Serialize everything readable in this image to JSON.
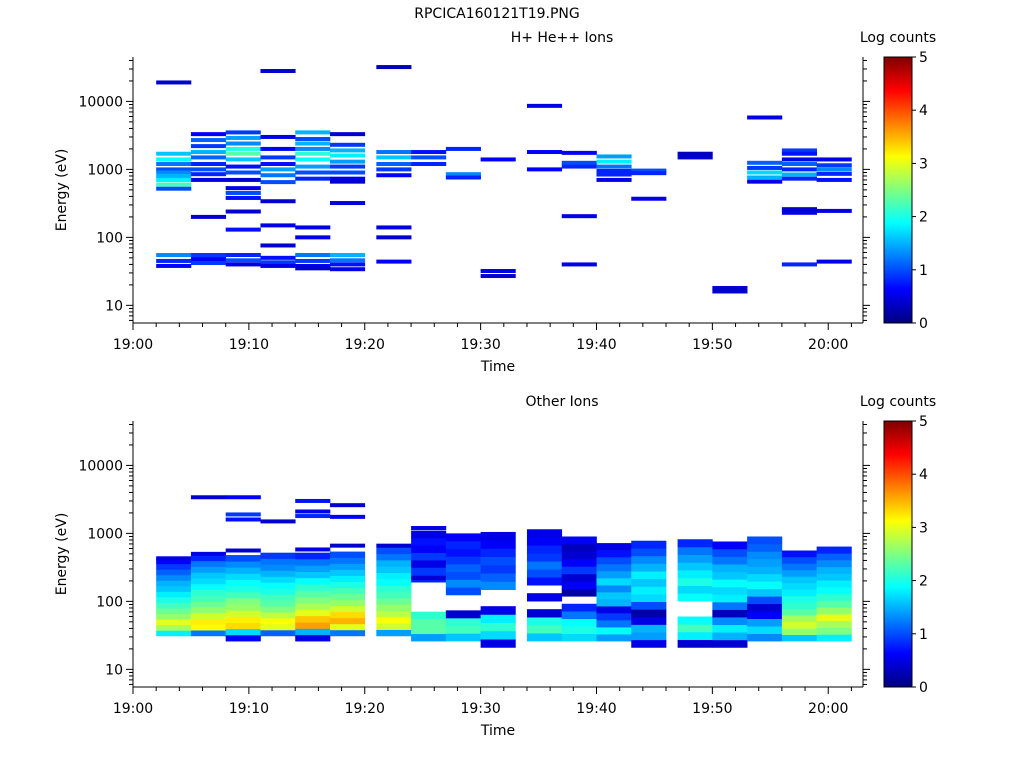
{
  "figure_title": "RPCICA160121T19.PNG",
  "colorbar": {
    "label": "Log counts",
    "ticks": [
      "0",
      "1",
      "2",
      "3",
      "4",
      "5"
    ],
    "range": [
      0,
      5
    ],
    "colormap": "jet"
  },
  "chart_data": [
    {
      "type": "heatmap",
      "title": "H+ He++ Ions",
      "xlabel": "Time",
      "ylabel": "Energy (eV)",
      "yscale": "log",
      "ylim": [
        5.5,
        45000
      ],
      "xlim_minutes": [
        0,
        63
      ],
      "x_ticks": [
        "19:00",
        "19:10",
        "19:20",
        "19:30",
        "19:40",
        "19:50",
        "20:00"
      ],
      "y_ticks": [
        "10",
        "100",
        "1000",
        "10000"
      ],
      "time_bins_start": [
        "19:02",
        "19:05",
        "19:08",
        "19:11",
        "19:14",
        "19:17",
        "19:21",
        "19:24",
        "19:27",
        "19:30",
        "19:34",
        "19:37",
        "19:40",
        "19:43",
        "19:47",
        "19:50",
        "19:53",
        "19:56",
        "19:59"
      ],
      "cells": [
        [
          0,
          19000,
          0.4
        ],
        [
          0,
          1700,
          1.6
        ],
        [
          0,
          1400,
          1.9
        ],
        [
          0,
          1200,
          1.2
        ],
        [
          0,
          1000,
          1.0
        ],
        [
          0,
          900,
          1.3
        ],
        [
          0,
          800,
          1.5
        ],
        [
          0,
          700,
          1.8
        ],
        [
          0,
          600,
          2.2
        ],
        [
          0,
          520,
          1.0
        ],
        [
          0,
          55,
          1.3
        ],
        [
          0,
          45,
          0.8
        ],
        [
          0,
          38,
          0.6
        ],
        [
          1,
          3300,
          0.6
        ],
        [
          1,
          2700,
          1.1
        ],
        [
          1,
          2200,
          0.9
        ],
        [
          1,
          1800,
          1.5
        ],
        [
          1,
          1500,
          1.1
        ],
        [
          1,
          1200,
          0.8
        ],
        [
          1,
          1000,
          1.0
        ],
        [
          1,
          850,
          0.8
        ],
        [
          1,
          700,
          0.5
        ],
        [
          1,
          200,
          0.4
        ],
        [
          1,
          55,
          0.9
        ],
        [
          1,
          48,
          0.6
        ],
        [
          1,
          42,
          0.9
        ],
        [
          2,
          3500,
          0.9
        ],
        [
          2,
          2900,
          1.4
        ],
        [
          2,
          2400,
          1.3
        ],
        [
          2,
          2000,
          2.0
        ],
        [
          2,
          1700,
          2.3
        ],
        [
          2,
          1400,
          1.6
        ],
        [
          2,
          1100,
          0.7
        ],
        [
          2,
          900,
          1.0
        ],
        [
          2,
          700,
          0.4
        ],
        [
          2,
          530,
          0.5
        ],
        [
          2,
          450,
          1.0
        ],
        [
          2,
          380,
          0.7
        ],
        [
          2,
          240,
          0.4
        ],
        [
          2,
          130,
          0.7
        ],
        [
          2,
          55,
          0.8
        ],
        [
          2,
          46,
          1.0
        ],
        [
          2,
          40,
          0.5
        ],
        [
          3,
          28000,
          0.4
        ],
        [
          3,
          3000,
          0.5
        ],
        [
          3,
          2000,
          0.6
        ],
        [
          3,
          1500,
          0.9
        ],
        [
          3,
          1200,
          0.7
        ],
        [
          3,
          1000,
          1.4
        ],
        [
          3,
          820,
          1.2
        ],
        [
          3,
          650,
          1.0
        ],
        [
          3,
          340,
          0.4
        ],
        [
          3,
          150,
          0.5
        ],
        [
          3,
          76,
          0.4
        ],
        [
          3,
          50,
          0.7
        ],
        [
          3,
          43,
          0.9
        ],
        [
          3,
          38,
          0.5
        ],
        [
          4,
          3500,
          1.5
        ],
        [
          4,
          2800,
          1.0
        ],
        [
          4,
          2400,
          1.5
        ],
        [
          4,
          2000,
          1.3
        ],
        [
          4,
          1700,
          2.1
        ],
        [
          4,
          1400,
          1.9
        ],
        [
          4,
          1100,
          1.4
        ],
        [
          4,
          900,
          1.0
        ],
        [
          4,
          730,
          0.8
        ],
        [
          4,
          140,
          0.5
        ],
        [
          4,
          100,
          0.5
        ],
        [
          4,
          55,
          1.2
        ],
        [
          4,
          45,
          0.9
        ],
        [
          4,
          38,
          0.5
        ],
        [
          4,
          35,
          0.4
        ],
        [
          5,
          3300,
          0.4
        ],
        [
          5,
          2300,
          0.9
        ],
        [
          5,
          1900,
          1.5
        ],
        [
          5,
          1600,
          1.8
        ],
        [
          5,
          1300,
          1.4
        ],
        [
          5,
          1100,
          0.9
        ],
        [
          5,
          900,
          1.0
        ],
        [
          5,
          730,
          0.5
        ],
        [
          5,
          660,
          0.4
        ],
        [
          5,
          320,
          0.5
        ],
        [
          5,
          55,
          1.5
        ],
        [
          5,
          46,
          1.2
        ],
        [
          5,
          40,
          0.7
        ],
        [
          5,
          34,
          0.5
        ],
        [
          6,
          32000,
          0.3
        ],
        [
          6,
          1800,
          1.2
        ],
        [
          6,
          1500,
          1.6
        ],
        [
          6,
          1200,
          1.1
        ],
        [
          6,
          1000,
          0.9
        ],
        [
          6,
          820,
          0.6
        ],
        [
          6,
          140,
          0.5
        ],
        [
          6,
          100,
          0.4
        ],
        [
          6,
          44,
          0.6
        ],
        [
          7,
          1800,
          0.7
        ],
        [
          7,
          1500,
          1.0
        ],
        [
          7,
          1200,
          0.8
        ],
        [
          8,
          2000,
          0.8
        ],
        [
          8,
          850,
          1.3
        ],
        [
          8,
          760,
          0.8
        ],
        [
          9,
          1400,
          0.6
        ],
        [
          9,
          32,
          0.5
        ],
        [
          9,
          27,
          0.4
        ],
        [
          10,
          8600,
          0.5
        ],
        [
          10,
          1800,
          0.6
        ],
        [
          10,
          1000,
          0.6
        ],
        [
          11,
          1750,
          0.6
        ],
        [
          11,
          1250,
          1.0
        ],
        [
          11,
          1100,
          0.8
        ],
        [
          11,
          205,
          0.5
        ],
        [
          11,
          40,
          0.5
        ],
        [
          12,
          1550,
          1.4
        ],
        [
          12,
          1300,
          1.8
        ],
        [
          12,
          1100,
          1.2
        ],
        [
          12,
          950,
          0.8
        ],
        [
          12,
          840,
          0.8
        ],
        [
          12,
          700,
          0.5
        ],
        [
          13,
          960,
          1.0
        ],
        [
          13,
          880,
          0.8
        ],
        [
          13,
          370,
          0.5
        ],
        [
          14,
          1700,
          0.3
        ],
        [
          14,
          1500,
          0.4
        ],
        [
          15,
          18,
          0.4
        ],
        [
          15,
          16,
          0.4
        ],
        [
          16,
          5800,
          0.5
        ],
        [
          16,
          1250,
          1.1
        ],
        [
          16,
          1050,
          0.9
        ],
        [
          16,
          900,
          1.7
        ],
        [
          16,
          760,
          1.5
        ],
        [
          16,
          660,
          0.5
        ],
        [
          17,
          1900,
          0.9
        ],
        [
          17,
          1700,
          0.7
        ],
        [
          17,
          1400,
          0.5
        ],
        [
          17,
          1200,
          1.1
        ],
        [
          17,
          1000,
          0.8
        ],
        [
          17,
          840,
          1.5
        ],
        [
          17,
          730,
          0.8
        ],
        [
          17,
          260,
          0.4
        ],
        [
          17,
          230,
          0.5
        ],
        [
          17,
          40,
          0.8
        ],
        [
          18,
          1400,
          0.5
        ],
        [
          18,
          1150,
          0.9
        ],
        [
          18,
          1000,
          1.3
        ],
        [
          18,
          860,
          0.8
        ],
        [
          18,
          700,
          0.7
        ],
        [
          18,
          245,
          0.5
        ],
        [
          18,
          44,
          0.5
        ]
      ]
    },
    {
      "type": "heatmap",
      "title": "Other Ions",
      "xlabel": "Time",
      "ylabel": "Energy (eV)",
      "yscale": "log",
      "ylim": [
        5.5,
        45000
      ],
      "xlim_minutes": [
        0,
        63
      ],
      "x_ticks": [
        "19:00",
        "19:10",
        "19:20",
        "19:30",
        "19:40",
        "19:50",
        "20:00"
      ],
      "y_ticks": [
        "10",
        "100",
        "1000",
        "10000"
      ],
      "time_bins_start": [
        "19:02",
        "19:05",
        "19:08",
        "19:11",
        "19:14",
        "19:17",
        "19:21",
        "19:24",
        "19:27",
        "19:30",
        "19:34",
        "19:37",
        "19:40",
        "19:43",
        "19:47",
        "19:50",
        "19:53",
        "19:56",
        "19:59"
      ],
      "columns": [
        {
          "bin": 0,
          "min": 31,
          "max": 430,
          "profile": [
            1.8,
            2.7,
            3.0,
            2.6,
            2.4,
            2.2,
            2.0,
            1.8,
            1.6,
            1.5,
            1.3,
            1.1,
            0.9,
            0.6
          ],
          "extra": [
            [
              430,
              0.5
            ]
          ]
        },
        {
          "bin": 1,
          "min": 31,
          "max": 480,
          "profile": [
            1.2,
            3.1,
            3.2,
            2.9,
            2.6,
            2.4,
            2.2,
            2.1,
            1.9,
            1.7,
            1.6,
            1.4,
            1.2,
            0.8
          ],
          "extra": [
            [
              3400,
              0.4
            ],
            [
              500,
              0.5
            ]
          ]
        },
        {
          "bin": 2,
          "min": 26,
          "max": 480,
          "profile": [
            0.6,
            1.7,
            3.3,
            3.2,
            2.9,
            2.6,
            2.5,
            2.2,
            2.0,
            1.9,
            1.7,
            1.5,
            1.3,
            1.0
          ],
          "extra": [
            [
              3400,
              0.6
            ],
            [
              1900,
              0.9
            ],
            [
              1600,
              0.7
            ],
            [
              560,
              0.4
            ]
          ]
        },
        {
          "bin": 3,
          "min": 31,
          "max": 520,
          "profile": [
            1.1,
            3.0,
            3.1,
            2.8,
            2.5,
            2.3,
            2.2,
            2.0,
            1.9,
            1.7,
            1.5,
            1.3,
            1.2,
            0.9
          ],
          "extra": [
            [
              1500,
              0.4
            ]
          ]
        },
        {
          "bin": 4,
          "min": 26,
          "max": 520,
          "profile": [
            0.5,
            1.5,
            3.6,
            3.4,
            3.0,
            2.7,
            2.5,
            2.3,
            2.1,
            1.9,
            1.6,
            1.4,
            1.2,
            0.8
          ],
          "extra": [
            [
              3000,
              0.7
            ],
            [
              2100,
              0.5
            ],
            [
              1800,
              0.8
            ],
            [
              580,
              0.5
            ]
          ]
        },
        {
          "bin": 5,
          "min": 31,
          "max": 540,
          "profile": [
            1.2,
            3.0,
            3.5,
            3.3,
            2.9,
            2.6,
            2.4,
            2.2,
            2.0,
            1.8,
            1.6,
            1.4,
            1.2,
            1.0
          ],
          "extra": [
            [
              2600,
              0.4
            ],
            [
              1750,
              0.6
            ],
            [
              660,
              0.4
            ]
          ]
        },
        {
          "bin": 6,
          "min": 31,
          "max": 620,
          "profile": [
            1.4,
            2.9,
            3.1,
            2.8,
            2.6,
            2.4,
            2.2,
            2.1,
            1.9,
            1.8,
            1.6,
            1.5,
            1.2,
            1.0
          ],
          "extra": [
            [
              660,
              0.4
            ]
          ]
        },
        {
          "bin": 7,
          "min": 26,
          "max": 1100,
          "profile": [
            1.4,
            2.3,
            2.3,
            2.1,
            0.0,
            0.0,
            0.0,
            0.0,
            0.8,
            0.9,
            0.5,
            0.9,
            0.6,
            0.7,
            0.5
          ],
          "extra": [
            [
              1200,
              0.5
            ],
            [
              220,
              0.4
            ]
          ]
        },
        {
          "bin": 8,
          "min": 26,
          "max": 1000,
          "profile": [
            1.6,
            2.2,
            2.1,
            0.4,
            0.0,
            0.0,
            1.0,
            1.3,
            1.0,
            1.1,
            0.9,
            0.7,
            0.8,
            0.6
          ]
        },
        {
          "bin": 9,
          "min": 21,
          "max": 1050,
          "profile": [
            0.5,
            1.7,
            2.1,
            1.8,
            0.5,
            0.0,
            0.0,
            1.3,
            1.1,
            0.9,
            1.0,
            0.8,
            0.6,
            0.5
          ]
        },
        {
          "bin": 10,
          "min": 26,
          "max": 1150,
          "profile": [
            1.6,
            2.2,
            2.0,
            0.4,
            0.0,
            0.5,
            0.0,
            0.7,
            1.0,
            1.2,
            0.9,
            0.8,
            0.6,
            0.5
          ]
        },
        {
          "bin": 11,
          "min": 26,
          "max": 900,
          "profile": [
            1.7,
            2.0,
            1.9,
            1.2,
            0.8,
            0.0,
            0.2,
            0.6,
            0.4,
            0.9,
            0.6,
            0.4,
            0.3,
            0.6
          ]
        },
        {
          "bin": 12,
          "min": 26,
          "max": 720,
          "profile": [
            1.4,
            1.9,
            1.2,
            0.9,
            0.5,
            1.5,
            1.6,
            1.3,
            1.7,
            1.4,
            1.2,
            1.0,
            0.7,
            0.5
          ]
        },
        {
          "bin": 13,
          "min": 21,
          "max": 780,
          "profile": [
            0.5,
            1.4,
            1.5,
            0.5,
            0.2,
            1.0,
            1.7,
            1.8,
            1.6,
            1.8,
            1.5,
            1.3,
            1.0,
            0.8
          ]
        },
        {
          "bin": 14,
          "min": 21,
          "max": 820,
          "profile": [
            0.4,
            1.8,
            2.2,
            1.9,
            0.0,
            0.0,
            1.9,
            1.7,
            2.0,
            1.8,
            1.6,
            1.4,
            1.2,
            0.8
          ]
        },
        {
          "bin": 15,
          "min": 21,
          "max": 760,
          "profile": [
            0.4,
            1.5,
            1.8,
            1.3,
            0.3,
            1.2,
            1.8,
            1.7,
            1.9,
            1.6,
            1.5,
            1.2,
            1.0,
            0.6
          ]
        },
        {
          "bin": 16,
          "min": 26,
          "max": 900,
          "profile": [
            1.3,
            1.7,
            1.4,
            0.6,
            0.4,
            1.0,
            1.6,
            1.9,
            1.7,
            1.5,
            1.4,
            1.3,
            1.1,
            1.0
          ]
        },
        {
          "bin": 17,
          "min": 26,
          "max": 560,
          "profile": [
            1.6,
            2.6,
            2.9,
            2.7,
            2.3,
            2.1,
            2.0,
            1.8,
            1.7,
            1.6,
            1.4,
            1.2,
            1.0,
            0.7
          ]
        },
        {
          "bin": 18,
          "min": 26,
          "max": 640,
          "profile": [
            1.8,
            2.5,
            2.7,
            3.0,
            2.6,
            2.3,
            2.1,
            1.9,
            1.8,
            1.6,
            1.5,
            1.3,
            1.1,
            0.8
          ]
        }
      ]
    }
  ]
}
